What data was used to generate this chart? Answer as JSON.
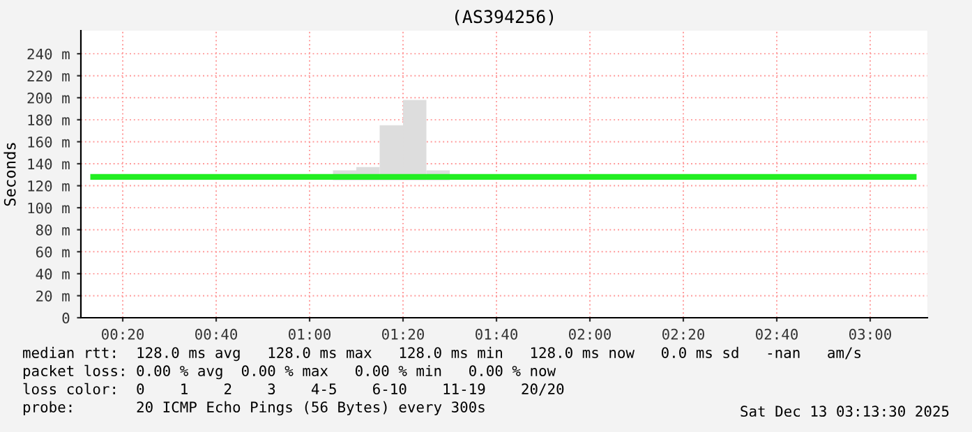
{
  "chart_data": {
    "type": "line",
    "title": "(AS394256)",
    "ylabel": "Seconds",
    "xlim": [
      0.184,
      3.204
    ],
    "xticks": [
      {
        "value": 0.3333,
        "label": "00:20"
      },
      {
        "value": 0.6667,
        "label": "00:40"
      },
      {
        "value": 1,
        "label": "01:00"
      },
      {
        "value": 1.3333,
        "label": "01:20"
      },
      {
        "value": 1.6667,
        "label": "01:40"
      },
      {
        "value": 2,
        "label": "02:00"
      },
      {
        "value": 2.3333,
        "label": "02:20"
      },
      {
        "value": 2.6667,
        "label": "02:40"
      },
      {
        "value": 3,
        "label": "03:00"
      }
    ],
    "ylim": [
      0,
      261
    ],
    "yticks": [
      0,
      {
        "value": 20,
        "label": "20 m"
      },
      {
        "value": 40,
        "label": "40 m"
      },
      {
        "value": 60,
        "label": "60 m"
      },
      {
        "value": 80,
        "label": "80 m"
      },
      {
        "value": 100,
        "label": "100 m"
      },
      {
        "value": 120,
        "label": "120 m"
      },
      {
        "value": 140,
        "label": "140 m"
      },
      {
        "value": 160,
        "label": "160 m"
      },
      {
        "value": 180,
        "label": "180 m"
      },
      {
        "value": 200,
        "label": "200 m"
      },
      {
        "value": 220,
        "label": "220 m"
      },
      {
        "value": 240,
        "label": "240 m"
      }
    ],
    "grid": true,
    "series": [
      {
        "type": "bar",
        "color": "#dddddd",
        "x": [
          1.125,
          1.2083,
          1.2917,
          1.375,
          1.4583
        ],
        "base": [
          125,
          125,
          125,
          125,
          125
        ],
        "values": [
          9,
          12,
          50,
          73,
          9
        ]
      },
      {
        "color": "#22ee22",
        "x": [
          0.228,
          3.155
        ],
        "values": [
          128,
          128
        ]
      }
    ],
    "annotations": [
      "median rtt:  128.0 ms avg   128.0 ms max   128.0 ms min   128.0 ms now   0.0 ms sd   -nan   am/s",
      "packet loss: 0.00 % avg  0.00 % max   0.00 % min   0.00 % now",
      "loss color:  0    1    2    3    4-5    6-10    11-19    20/20",
      "probe:       20 ICMP Echo Pings (56 Bytes) every 300s",
      "Sat Dec 13 03:13:30 2025"
    ]
  }
}
